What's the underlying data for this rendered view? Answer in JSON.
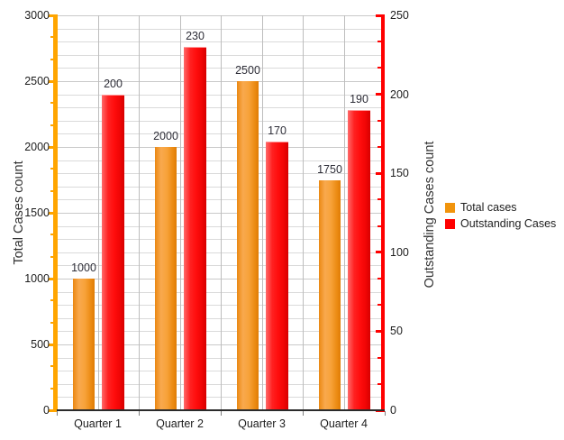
{
  "chart_data": {
    "type": "bar",
    "title": "",
    "categories": [
      "Quarter 1",
      "Quarter 2",
      "Quarter 3",
      "Quarter 4"
    ],
    "series": [
      {
        "name": "Total cases",
        "axis": "left",
        "color": "#F1940C",
        "values": [
          1000,
          2000,
          2500,
          1750
        ]
      },
      {
        "name": "Outstanding Cases",
        "axis": "right",
        "color": "#FF0000",
        "values": [
          200,
          230,
          170,
          190
        ]
      }
    ],
    "left_axis": {
      "label": "Total Cases count",
      "min": 0,
      "max": 3000,
      "tick_step": 500,
      "ticks": [
        0,
        500,
        1000,
        1500,
        2000,
        2500,
        3000
      ],
      "minor_divisions_per_step": 3,
      "color": "#FFA500"
    },
    "right_axis": {
      "label": "Outstanding Cases count",
      "min": 0,
      "max": 250,
      "tick_step": 50,
      "ticks": [
        0,
        50,
        100,
        150,
        200,
        250
      ],
      "minor_divisions_per_step": 3,
      "color": "#FF0000"
    },
    "grid": true,
    "legend": {
      "position": "right",
      "items": [
        {
          "label": "Total cases",
          "color": "#F1940C"
        },
        {
          "label": "Outstanding Cases",
          "color": "#FF0000"
        }
      ]
    }
  }
}
